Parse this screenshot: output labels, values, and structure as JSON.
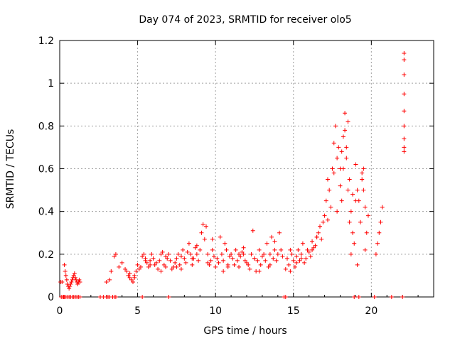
{
  "chart_data": {
    "type": "scatter",
    "title": "Day 074 of 2023, SRMTID for receiver olo5",
    "xlabel": "GPS time / hours",
    "ylabel": "SRMTID / TECUs",
    "xlim": [
      0,
      24
    ],
    "ylim": [
      0,
      1.2
    ],
    "xticks": [
      0,
      5,
      10,
      15,
      20
    ],
    "xtick_labels": [
      "0",
      "5",
      "10",
      "15",
      "20"
    ],
    "yticks": [
      0,
      0.2,
      0.4,
      0.6,
      0.8,
      1.0,
      1.2
    ],
    "ytick_labels": [
      "0",
      "0.2",
      "0.4",
      "0.6",
      "0.8",
      "1",
      "1.2"
    ],
    "grid": true,
    "marker": "+",
    "color": "#ff0000",
    "series": [
      {
        "name": "olo5",
        "x": [
          0.05,
          0.15,
          0.3,
          0.35,
          0.4,
          0.45,
          0.5,
          0.55,
          0.6,
          0.65,
          0.7,
          0.75,
          0.8,
          0.85,
          0.9,
          0.95,
          1.0,
          1.05,
          1.1,
          1.15,
          1.2,
          1.25,
          1.3,
          0.1,
          0.2,
          0.25,
          0.3,
          0.4,
          0.5,
          0.6,
          0.7,
          0.8,
          0.9,
          1.0,
          1.1,
          1.2,
          1.3,
          2.6,
          2.8,
          3.0,
          3.1,
          3.2,
          3.4,
          3.5,
          3.6,
          5.3,
          7.0,
          14.4,
          14.5,
          18.9,
          19.2,
          20.2,
          21.3,
          22.0,
          3.0,
          3.2,
          3.3,
          3.5,
          3.6,
          3.8,
          4.0,
          4.2,
          4.3,
          4.4,
          4.5,
          4.6,
          4.7,
          4.8,
          4.9,
          5.0,
          5.1,
          5.2,
          5.3,
          5.4,
          5.5,
          5.6,
          5.7,
          5.8,
          5.9,
          6.0,
          6.1,
          6.2,
          6.3,
          6.4,
          6.5,
          6.6,
          6.7,
          6.8,
          6.9,
          7.0,
          7.1,
          7.2,
          7.3,
          7.4,
          7.5,
          7.6,
          7.7,
          7.8,
          7.9,
          8.0,
          8.1,
          8.2,
          8.3,
          8.4,
          8.5,
          8.6,
          8.7,
          8.8,
          8.9,
          9.0,
          9.1,
          9.2,
          9.3,
          9.4,
          9.5,
          9.6,
          9.7,
          9.8,
          9.9,
          10.0,
          10.1,
          10.2,
          10.3,
          10.4,
          10.5,
          10.6,
          10.7,
          10.8,
          10.9,
          11.0,
          11.1,
          11.2,
          11.3,
          11.4,
          11.5,
          11.6,
          11.7,
          11.8,
          11.9,
          12.0,
          12.1,
          12.2,
          12.3,
          12.4,
          12.5,
          12.6,
          12.7,
          12.8,
          12.9,
          13.0,
          13.1,
          13.2,
          13.3,
          13.4,
          13.5,
          13.6,
          13.7,
          13.8,
          13.9,
          14.0,
          14.1,
          14.2,
          14.3,
          14.5,
          14.6,
          14.7,
          14.8,
          14.9,
          15.0,
          15.1,
          15.2,
          15.3,
          15.4,
          15.5,
          15.6,
          15.7,
          15.8,
          15.9,
          16.0,
          16.1,
          16.2,
          16.3,
          16.4,
          16.5,
          16.6,
          16.7,
          16.8,
          16.9,
          17.0,
          17.1,
          17.2,
          17.3,
          17.4,
          17.5,
          17.6,
          17.7,
          17.8,
          17.9,
          18.0,
          18.1,
          18.2,
          18.3,
          18.4,
          18.5,
          18.6,
          18.7,
          18.8,
          18.9,
          19.0,
          19.1,
          19.2,
          19.3,
          19.4,
          19.5,
          19.6,
          19.7,
          19.8,
          20.3,
          20.4,
          20.5,
          20.6,
          20.7,
          4.5,
          5.5,
          6.5,
          7.5,
          8.5,
          9.5,
          10.5,
          11.5,
          12.5,
          13.5,
          14.8,
          15.5,
          16.5,
          17.8,
          18.0,
          18.2,
          18.4,
          18.6,
          18.8,
          19.0,
          19.4,
          19.6,
          4.8,
          5.8,
          6.8,
          7.8,
          8.8,
          9.8,
          10.8,
          11.8,
          12.8,
          13.8,
          15.2,
          16.2,
          17.2,
          17.6,
          18.1,
          18.3,
          18.5,
          18.7,
          19.1,
          19.5,
          22.1,
          22.1,
          22.1,
          22.1,
          22.1,
          22.1,
          22.1,
          22.1,
          22.1
        ],
        "y": [
          0.07,
          0.07,
          0.15,
          0.12,
          0.1,
          0.08,
          0.06,
          0.05,
          0.04,
          0.05,
          0.06,
          0.07,
          0.08,
          0.09,
          0.1,
          0.11,
          0.09,
          0.08,
          0.07,
          0.06,
          0.07,
          0.08,
          0.07,
          0.0,
          0.0,
          0.0,
          0.0,
          0.0,
          0.0,
          0.0,
          0.0,
          0.0,
          0.0,
          0.0,
          0.0,
          0.0,
          0.0,
          0.0,
          0.0,
          0.0,
          0.0,
          0.0,
          0.0,
          0.0,
          0.0,
          0.0,
          0.0,
          0.0,
          0.0,
          0.0,
          0.0,
          0.0,
          0.0,
          0.0,
          0.07,
          0.08,
          0.12,
          0.19,
          0.2,
          0.14,
          0.16,
          0.13,
          0.12,
          0.1,
          0.09,
          0.08,
          0.07,
          0.1,
          0.12,
          0.15,
          0.13,
          0.14,
          0.19,
          0.2,
          0.18,
          0.16,
          0.14,
          0.17,
          0.2,
          0.18,
          0.15,
          0.16,
          0.13,
          0.17,
          0.2,
          0.21,
          0.15,
          0.14,
          0.18,
          0.2,
          0.17,
          0.13,
          0.14,
          0.16,
          0.18,
          0.2,
          0.15,
          0.19,
          0.22,
          0.18,
          0.16,
          0.21,
          0.25,
          0.2,
          0.15,
          0.18,
          0.23,
          0.2,
          0.17,
          0.22,
          0.3,
          0.34,
          0.27,
          0.33,
          0.2,
          0.15,
          0.17,
          0.22,
          0.19,
          0.14,
          0.18,
          0.16,
          0.28,
          0.2,
          0.17,
          0.25,
          0.22,
          0.15,
          0.19,
          0.2,
          0.18,
          0.15,
          0.22,
          0.17,
          0.14,
          0.19,
          0.21,
          0.2,
          0.17,
          0.16,
          0.15,
          0.13,
          0.2,
          0.31,
          0.18,
          0.12,
          0.17,
          0.22,
          0.15,
          0.19,
          0.2,
          0.17,
          0.25,
          0.14,
          0.2,
          0.28,
          0.18,
          0.22,
          0.17,
          0.2,
          0.3,
          0.22,
          0.19,
          0.13,
          0.18,
          0.15,
          0.22,
          0.2,
          0.17,
          0.14,
          0.19,
          0.22,
          0.17,
          0.2,
          0.25,
          0.16,
          0.18,
          0.22,
          0.21,
          0.19,
          0.26,
          0.23,
          0.24,
          0.28,
          0.3,
          0.33,
          0.27,
          0.35,
          0.38,
          0.45,
          0.55,
          0.5,
          0.42,
          0.6,
          0.72,
          0.8,
          0.65,
          0.7,
          0.6,
          0.45,
          0.75,
          0.86,
          0.65,
          0.82,
          0.55,
          0.4,
          0.48,
          0.25,
          0.62,
          0.5,
          0.45,
          0.35,
          0.55,
          0.6,
          0.42,
          0.3,
          0.38,
          0.2,
          0.25,
          0.3,
          0.35,
          0.42,
          0.11,
          0.17,
          0.12,
          0.14,
          0.18,
          0.16,
          0.12,
          0.2,
          0.18,
          0.15,
          0.12,
          0.18,
          0.28,
          0.4,
          0.52,
          0.6,
          0.7,
          0.35,
          0.3,
          0.45,
          0.58,
          0.22,
          0.09,
          0.15,
          0.19,
          0.13,
          0.24,
          0.27,
          0.14,
          0.23,
          0.12,
          0.26,
          0.16,
          0.22,
          0.36,
          0.58,
          0.68,
          0.78,
          0.5,
          0.2,
          0.15,
          0.5,
          1.14,
          1.11,
          1.04,
          0.95,
          0.87,
          0.8,
          0.74,
          0.7,
          0.68
        ]
      }
    ]
  }
}
